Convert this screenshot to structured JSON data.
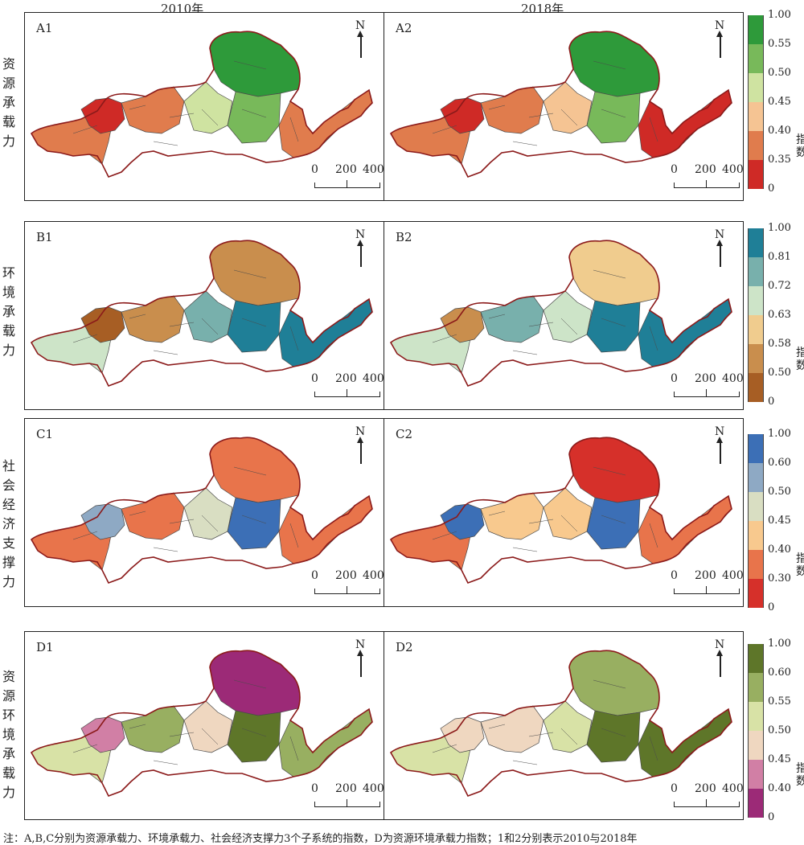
{
  "years": [
    "2010年",
    "2018年"
  ],
  "scale_labels": [
    "0",
    "200",
    "400 km"
  ],
  "north_label": "N",
  "rows": [
    {
      "id": "A",
      "row_label": "资源承载力",
      "panels": [
        "A1",
        "A2"
      ],
      "legend_title": "指数",
      "legend_ticks": [
        "1.00",
        "0.55",
        "0.50",
        "0.45",
        "0.40",
        "0.35",
        "0"
      ],
      "colors": [
        "#2e9a3a",
        "#78b95a",
        "#cfe3a1",
        "#f5c493",
        "#e07c4d",
        "#cf2a26"
      ]
    },
    {
      "id": "B",
      "row_label": "环境承载力",
      "panels": [
        "B1",
        "B2"
      ],
      "legend_title": "指数",
      "legend_ticks": [
        "1.00",
        "0.81",
        "0.72",
        "0.63",
        "0.58",
        "0.50",
        "0"
      ],
      "colors": [
        "#1f7f97",
        "#78b0ac",
        "#cde4c8",
        "#f0cc8e",
        "#c98e4d",
        "#a75e24"
      ]
    },
    {
      "id": "C",
      "row_label": "社会经济支撑力",
      "panels": [
        "C1",
        "C2"
      ],
      "legend_title": "指数",
      "legend_ticks": [
        "1.00",
        "0.60",
        "0.50",
        "0.45",
        "0.40",
        "0.30",
        "0"
      ],
      "colors": [
        "#3c6fb6",
        "#8ea9c4",
        "#d9dec2",
        "#f8c98e",
        "#e8744b",
        "#d6302a"
      ]
    },
    {
      "id": "D",
      "row_label": "资源环境承载力",
      "panels": [
        "D1",
        "D2"
      ],
      "legend_title": "指数",
      "legend_ticks": [
        "1.00",
        "0.60",
        "0.55",
        "0.50",
        "0.45",
        "0.40",
        "0"
      ],
      "colors": [
        "#5e7629",
        "#98af61",
        "#d8e2a6",
        "#efd7c0",
        "#d17fa5",
        "#9c2a77"
      ]
    }
  ],
  "panel_fill_index": {
    "A1": [
      4,
      5,
      4,
      2,
      0,
      1,
      4
    ],
    "A2": [
      4,
      5,
      4,
      3,
      0,
      1,
      5
    ],
    "B1": [
      2,
      5,
      4,
      1,
      4,
      0,
      0
    ],
    "B2": [
      2,
      4,
      1,
      2,
      3,
      0,
      0
    ],
    "C1": [
      4,
      1,
      4,
      2,
      4,
      0,
      4
    ],
    "C2": [
      4,
      0,
      3,
      3,
      5,
      0,
      4
    ],
    "D1": [
      2,
      4,
      1,
      3,
      5,
      0,
      1
    ],
    "D2": [
      2,
      3,
      3,
      2,
      1,
      0,
      0
    ]
  },
  "footnote": "注：A,B,C分别为资源承载力、环境承载力、社会经济支撑力3个子系统的指数，D为资源环境承载力指数；1和2分别表示2010与2018年"
}
